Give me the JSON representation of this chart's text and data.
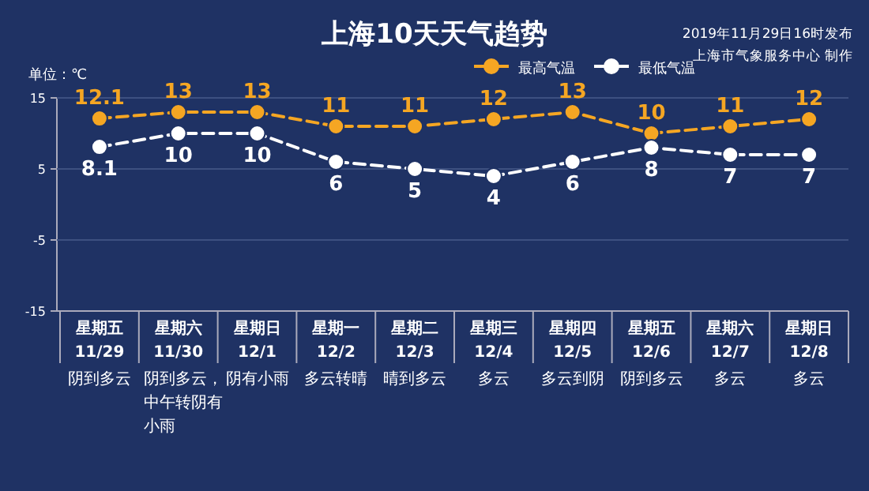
{
  "chart_data": {
    "type": "line",
    "title": "上海10天天气趋势",
    "ylabel": "单位：℃",
    "annotations": [
      "2019年11月29日16时发布",
      "上海市气象服务中心 制作"
    ],
    "categories": [
      "星期五\n11/29\n阴到多云",
      "星期六\n11/30\n阴到多云，中午转阴有小雨",
      "星期日\n12/1\n阴有小雨",
      "星期一\n12/2\n多云转晴",
      "星期二\n12/3\n晴到多云",
      "星期三\n12/4\n多云",
      "星期四\n12/5\n多云到阴",
      "星期五\n12/6\n阴到多云",
      "星期六\n12/7\n多云",
      "星期日\n12/8\n多云"
    ],
    "series": [
      {
        "name": "最高气温",
        "color": "#f5a623",
        "values": [
          12.1,
          13,
          13,
          11,
          11,
          12,
          13,
          10,
          11,
          12
        ]
      },
      {
        "name": "最低气温",
        "color": "#ffffff",
        "values": [
          8.1,
          10,
          10,
          6,
          5,
          4,
          6,
          8,
          7,
          7
        ]
      }
    ],
    "ylim": [
      -15,
      15
    ],
    "yticks": [
      -15,
      -5,
      5,
      15
    ],
    "grid": "y",
    "legend": "top right",
    "marker": "circle",
    "line_style": "dashed",
    "data_labels": true
  }
}
